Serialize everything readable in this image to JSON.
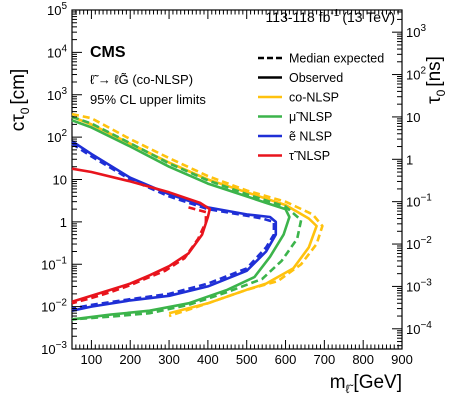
{
  "chart_data": {
    "type": "line",
    "experiment": "CMS",
    "luminosity": "113-118 fb",
    "luminosity_exp": "-1",
    "energy": "(13 TeV)",
    "process": "ℓ̃ → ℓG̃ (co-NLSP)",
    "limits_text": "95% CL upper limits",
    "xlabel": "m",
    "xlabel_sub": "ℓ̃",
    "xlabel_unit": "[GeV]",
    "ylabel": "cτ",
    "ylabel_sub": "0",
    "ylabel_unit": "[cm]",
    "y2label": "τ",
    "y2label_sub": "0",
    "y2label_unit": "[ns]",
    "xlim": [
      50,
      900
    ],
    "ylim": [
      0.001,
      100000
    ],
    "y_scale": "log",
    "x_ticks": [
      "100",
      "200",
      "300",
      "400",
      "500",
      "600",
      "700",
      "800",
      "900"
    ],
    "y_tick_labels": [
      {
        "v": 0.001,
        "base": "10",
        "exp": "−3"
      },
      {
        "v": 0.01,
        "base": "10",
        "exp": "−2"
      },
      {
        "v": 0.1,
        "base": "10",
        "exp": "−1"
      },
      {
        "v": 1,
        "base": "1",
        "exp": ""
      },
      {
        "v": 10,
        "base": "10",
        "exp": ""
      },
      {
        "v": 100,
        "base": "10",
        "exp": "2"
      },
      {
        "v": 1000,
        "base": "10",
        "exp": "3"
      },
      {
        "v": 10000,
        "base": "10",
        "exp": "4"
      },
      {
        "v": 100000,
        "base": "10",
        "exp": "5"
      }
    ],
    "y2_tick_labels": [
      {
        "v": 0.0001,
        "base": "10",
        "exp": "−4"
      },
      {
        "v": 0.001,
        "base": "10",
        "exp": "−3"
      },
      {
        "v": 0.01,
        "base": "10",
        "exp": "−2"
      },
      {
        "v": 0.1,
        "base": "10",
        "exp": "−1"
      },
      {
        "v": 1,
        "base": "1",
        "exp": ""
      },
      {
        "v": 10,
        "base": "10",
        "exp": ""
      },
      {
        "v": 100,
        "base": "10",
        "exp": "2"
      },
      {
        "v": 1000,
        "base": "10",
        "exp": "3"
      }
    ],
    "legend": {
      "placement": "top-right",
      "entries": [
        {
          "label": "Median expected",
          "style": "dashed",
          "color": "#000000"
        },
        {
          "label": "Observed",
          "style": "solid",
          "color": "#000000"
        },
        {
          "label": "co-NLSP",
          "style": "solid",
          "color": "#ffc20e"
        },
        {
          "label": "μ̃ NLSP",
          "style": "solid",
          "color": "#3cb44b"
        },
        {
          "label": "ẽ NLSP",
          "style": "solid",
          "color": "#1f2fd6"
        },
        {
          "label": "τ̃ NLSP",
          "style": "solid",
          "color": "#e8141d"
        }
      ]
    },
    "series": [
      {
        "name": "co-NLSP",
        "style": "solid",
        "color": "#ffc20e",
        "points": [
          [
            50,
            300
          ],
          [
            100,
            200
          ],
          [
            200,
            70
          ],
          [
            300,
            25
          ],
          [
            400,
            10
          ],
          [
            500,
            5
          ],
          [
            600,
            2.5
          ],
          [
            660,
            1.2
          ],
          [
            680,
            0.8
          ],
          [
            660,
            0.25
          ],
          [
            620,
            0.08
          ],
          [
            550,
            0.035
          ],
          [
            500,
            0.025
          ],
          [
            400,
            0.012
          ],
          [
            300,
            0.007
          ]
        ]
      },
      {
        "name": "co-NLSP",
        "style": "dashed",
        "color": "#ffc20e",
        "points": [
          [
            50,
            350
          ],
          [
            100,
            280
          ],
          [
            200,
            90
          ],
          [
            300,
            32
          ],
          [
            400,
            12
          ],
          [
            500,
            5.5
          ],
          [
            600,
            3
          ],
          [
            670,
            1.5
          ],
          [
            695,
            0.8
          ],
          [
            680,
            0.3
          ],
          [
            640,
            0.1
          ],
          [
            580,
            0.04
          ],
          [
            500,
            0.025
          ],
          [
            400,
            0.012
          ],
          [
            300,
            0.006
          ]
        ]
      },
      {
        "name": "μ̃ NLSP",
        "style": "solid",
        "color": "#3cb44b",
        "points": [
          [
            50,
            250
          ],
          [
            100,
            170
          ],
          [
            200,
            60
          ],
          [
            300,
            20
          ],
          [
            400,
            8
          ],
          [
            500,
            4
          ],
          [
            550,
            2.8
          ],
          [
            600,
            2
          ],
          [
            610,
            1.3
          ],
          [
            595,
            0.5
          ],
          [
            560,
            0.15
          ],
          [
            520,
            0.05
          ],
          [
            450,
            0.025
          ],
          [
            350,
            0.012
          ],
          [
            250,
            0.008
          ],
          [
            150,
            0.0065
          ],
          [
            50,
            0.005
          ]
        ]
      },
      {
        "name": "μ̃ NLSP",
        "style": "dashed",
        "color": "#3cb44b",
        "points": [
          [
            50,
            300
          ],
          [
            100,
            210
          ],
          [
            200,
            72
          ],
          [
            300,
            24
          ],
          [
            400,
            9.5
          ],
          [
            500,
            4.5
          ],
          [
            550,
            3.2
          ],
          [
            600,
            2.3
          ],
          [
            640,
            1.1
          ],
          [
            630,
            0.4
          ],
          [
            590,
            0.12
          ],
          [
            540,
            0.045
          ],
          [
            450,
            0.022
          ],
          [
            350,
            0.011
          ],
          [
            250,
            0.007
          ],
          [
            150,
            0.0058
          ],
          [
            50,
            0.005
          ]
        ]
      },
      {
        "name": "ẽ NLSP",
        "style": "solid",
        "color": "#1f2fd6",
        "points": [
          [
            50,
            80
          ],
          [
            100,
            40
          ],
          [
            200,
            11
          ],
          [
            300,
            4.5
          ],
          [
            400,
            2.2
          ],
          [
            500,
            1.5
          ],
          [
            560,
            1.3
          ],
          [
            575,
            1
          ],
          [
            575,
            0.5
          ],
          [
            550,
            0.2
          ],
          [
            500,
            0.07
          ],
          [
            400,
            0.03
          ],
          [
            300,
            0.018
          ],
          [
            200,
            0.014
          ],
          [
            100,
            0.01
          ],
          [
            50,
            0.008
          ]
        ]
      },
      {
        "name": "ẽ NLSP",
        "style": "dashed",
        "color": "#1f2fd6",
        "points": [
          [
            50,
            70
          ],
          [
            100,
            35
          ],
          [
            200,
            10
          ],
          [
            300,
            4
          ],
          [
            400,
            2
          ],
          [
            500,
            1.4
          ],
          [
            540,
            1.2
          ],
          [
            570,
            1
          ],
          [
            570,
            0.5
          ],
          [
            550,
            0.25
          ],
          [
            500,
            0.08
          ],
          [
            400,
            0.035
          ],
          [
            300,
            0.02
          ],
          [
            200,
            0.015
          ],
          [
            100,
            0.011
          ],
          [
            50,
            0.009
          ]
        ]
      },
      {
        "name": "τ̃ NLSP",
        "style": "solid",
        "color": "#e8141d",
        "points": [
          [
            50,
            18
          ],
          [
            100,
            15
          ],
          [
            200,
            9
          ],
          [
            300,
            5
          ],
          [
            380,
            2.8
          ],
          [
            405,
            2
          ],
          [
            400,
            1.3
          ],
          [
            385,
            0.5
          ],
          [
            350,
            0.18
          ],
          [
            300,
            0.09
          ],
          [
            250,
            0.055
          ],
          [
            200,
            0.035
          ],
          [
            150,
            0.025
          ],
          [
            100,
            0.018
          ],
          [
            50,
            0.013
          ]
        ]
      },
      {
        "name": "τ̃ NLSP",
        "style": "dashed",
        "color": "#e8141d",
        "points": [
          [
            350,
            2.2
          ],
          [
            395,
            1.7
          ],
          [
            395,
            1
          ],
          [
            375,
            0.4
          ],
          [
            340,
            0.14
          ],
          [
            290,
            0.07
          ],
          [
            250,
            0.05
          ],
          [
            200,
            0.032
          ],
          [
            150,
            0.022
          ],
          [
            100,
            0.016
          ],
          [
            50,
            0.012
          ]
        ]
      }
    ]
  }
}
